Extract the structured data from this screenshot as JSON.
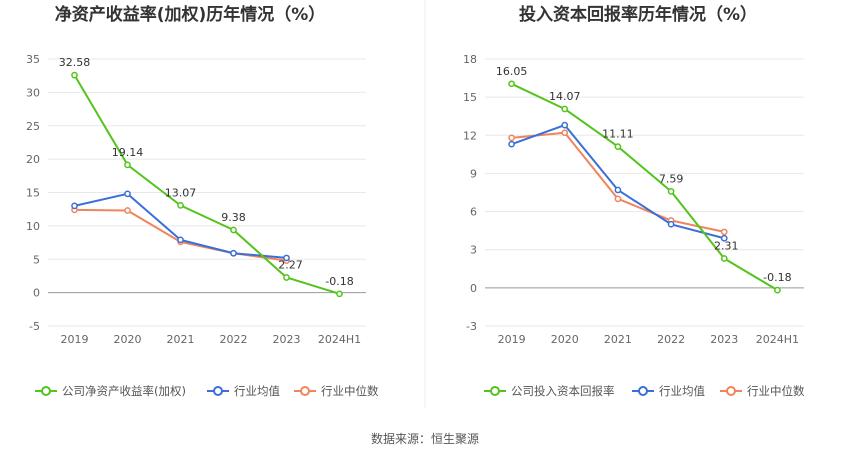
{
  "source": "数据来源：恒生聚源",
  "colors": {
    "company": "#52c41a",
    "avg": "#3a6fd8",
    "median": "#f0845a",
    "grid": "#e8e8e8",
    "axis": "#999999"
  },
  "chart_data": [
    {
      "type": "line",
      "title": "净资产收益率(加权)历年情况（%）",
      "categories": [
        "2019",
        "2020",
        "2021",
        "2022",
        "2023",
        "2024H1"
      ],
      "ylim": [
        -5,
        35
      ],
      "yticks": [
        35,
        30,
        25,
        20,
        15,
        10,
        5,
        0,
        -5
      ],
      "grid": true,
      "legend_position": "bottom",
      "series": [
        {
          "name": "公司净资产收益率(加权)",
          "key": "company",
          "values": [
            32.58,
            19.14,
            13.07,
            9.38,
            2.27,
            -0.18
          ],
          "labels": [
            "32.58",
            "19.14",
            "13.07",
            "9.38",
            "2.27",
            "-0.18"
          ]
        },
        {
          "name": "行业均值",
          "key": "avg",
          "values": [
            13.0,
            14.8,
            7.9,
            5.9,
            5.2,
            null
          ]
        },
        {
          "name": "行业中位数",
          "key": "median",
          "values": [
            12.4,
            12.3,
            7.6,
            5.9,
            4.8,
            null
          ]
        }
      ]
    },
    {
      "type": "line",
      "title": "投入资本回报率历年情况（%）",
      "categories": [
        "2019",
        "2020",
        "2021",
        "2022",
        "2023",
        "2024H1"
      ],
      "ylim": [
        -3,
        18
      ],
      "yticks": [
        18,
        15,
        12,
        9,
        6,
        3,
        0,
        -3
      ],
      "grid": true,
      "legend_position": "bottom",
      "series": [
        {
          "name": "公司投入资本回报率",
          "key": "company",
          "values": [
            16.05,
            14.07,
            11.11,
            7.59,
            2.31,
            -0.18
          ],
          "labels": [
            "16.05",
            "14.07",
            "11.11",
            "7.59",
            "2.31",
            "-0.18"
          ]
        },
        {
          "name": "行业均值",
          "key": "avg",
          "values": [
            11.3,
            12.8,
            7.7,
            5.0,
            3.9,
            null
          ]
        },
        {
          "name": "行业中位数",
          "key": "median",
          "values": [
            11.8,
            12.2,
            7.0,
            5.3,
            4.4,
            null
          ]
        }
      ]
    }
  ]
}
